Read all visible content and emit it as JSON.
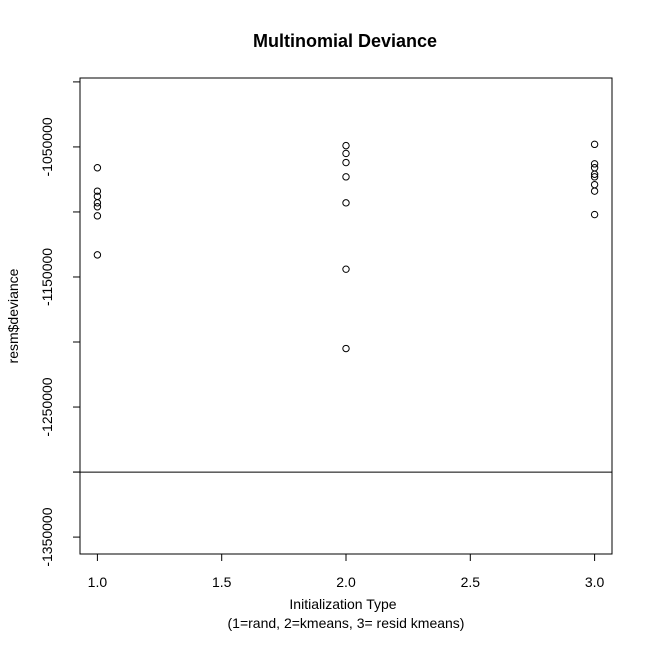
{
  "chart_data": {
    "type": "scatter",
    "title": "Multinomial Deviance",
    "xlabel": "Initialization Type",
    "xlabel_line2": "(1=rand, 2=kmeans, 3= resid kmeans)",
    "ylabel": "resm$deviance",
    "xlim": [
      0.93,
      3.07
    ],
    "ylim": [
      -1363000,
      -997000
    ],
    "xticks": [
      1.0,
      1.5,
      2.0,
      2.5,
      3.0
    ],
    "xtick_labels": [
      "1.0",
      "1.5",
      "2.0",
      "2.5",
      "3.0"
    ],
    "yticks": [
      -1350000,
      -1250000,
      -1150000,
      -1050000
    ],
    "ytick_labels": [
      "-1350000",
      "-1250000",
      "-1150000",
      "-1050000"
    ],
    "grid": false,
    "hline": -1300000,
    "points": [
      {
        "x": 1.0,
        "y": -1066000
      },
      {
        "x": 1.0,
        "y": -1084000
      },
      {
        "x": 1.0,
        "y": -1088000
      },
      {
        "x": 1.0,
        "y": -1093000
      },
      {
        "x": 1.0,
        "y": -1096000
      },
      {
        "x": 1.0,
        "y": -1103000
      },
      {
        "x": 1.0,
        "y": -1133000
      },
      {
        "x": 2.0,
        "y": -1049000
      },
      {
        "x": 2.0,
        "y": -1055000
      },
      {
        "x": 2.0,
        "y": -1062000
      },
      {
        "x": 2.0,
        "y": -1073000
      },
      {
        "x": 2.0,
        "y": -1093000
      },
      {
        "x": 2.0,
        "y": -1144000
      },
      {
        "x": 2.0,
        "y": -1205000
      },
      {
        "x": 3.0,
        "y": -1048000
      },
      {
        "x": 3.0,
        "y": -1063000
      },
      {
        "x": 3.0,
        "y": -1066000
      },
      {
        "x": 3.0,
        "y": -1071000
      },
      {
        "x": 3.0,
        "y": -1073000
      },
      {
        "x": 3.0,
        "y": -1079000
      },
      {
        "x": 3.0,
        "y": -1084000
      },
      {
        "x": 3.0,
        "y": -1102000
      }
    ]
  }
}
